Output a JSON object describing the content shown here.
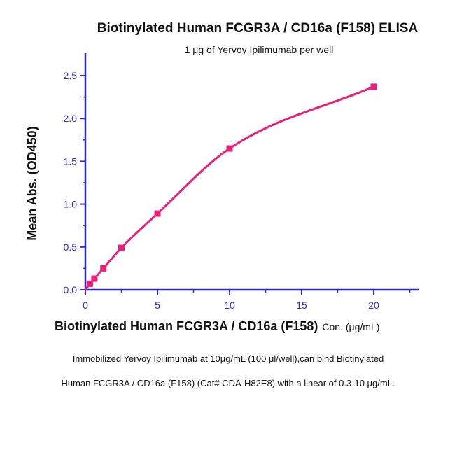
{
  "chart_data": {
    "type": "scatter",
    "title": "Biotinylated Human FCGR3A / CD16a (F158) ELISA",
    "subtitle": "1 μg of Yervoy Ipilimumab per well",
    "xlabel": "Biotinylated Human FCGR3A / CD16a (F158)",
    "xlabel_unit": "Con. (μg/mL)",
    "ylabel": "Mean Abs. (OD450)",
    "xlim": [
      0,
      23
    ],
    "ylim": [
      0,
      2.7
    ],
    "x_ticks": [
      "0",
      "5",
      "10",
      "15",
      "20"
    ],
    "x_tick_values": [
      0,
      5,
      10,
      15,
      20
    ],
    "y_ticks": [
      "0.0",
      "0.5",
      "1.0",
      "1.5",
      "2.0",
      "2.5"
    ],
    "y_tick_values": [
      0,
      0.5,
      1.0,
      1.5,
      2.0,
      2.5
    ],
    "grid": false,
    "series": [
      {
        "x": [
          0.31,
          0.625,
          1.25,
          2.5,
          5,
          10,
          20
        ],
        "y": [
          0.07,
          0.13,
          0.25,
          0.49,
          0.89,
          1.65,
          2.37
        ],
        "color": "#e8207a",
        "marker": "square",
        "fit": "curve"
      }
    ],
    "axis_color": "#2b2bd6"
  },
  "caption": {
    "line1": "Immobilized Yervoy Ipilimumab at 10μg/mL (100 μl/well),can bind Biotinylated",
    "line2": "Human FCGR3A / CD16a (F158) (Cat# CDA-H82E8) with a linear of 0.3-10 μg/mL."
  }
}
